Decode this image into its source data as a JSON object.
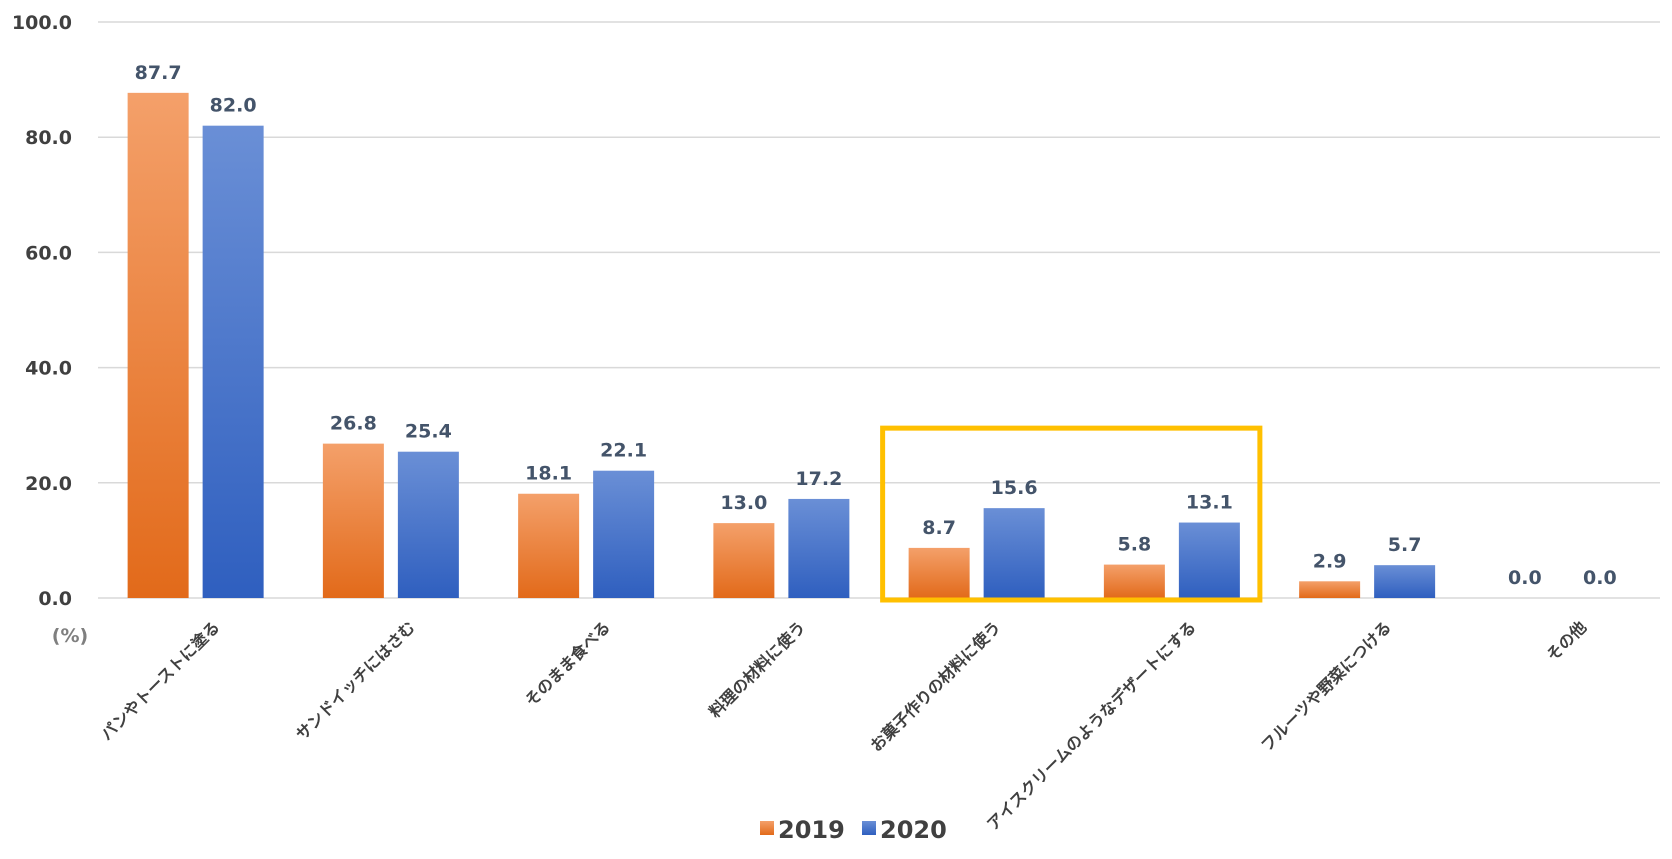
{
  "chart_data": {
    "type": "bar",
    "title": "",
    "xlabel": "",
    "ylabel": "",
    "unit_label": "(%)",
    "ylim": [
      0,
      100
    ],
    "yticks": [
      "0.0",
      "20.0",
      "40.0",
      "60.0",
      "80.0",
      "100.0"
    ],
    "ytick_values": [
      0,
      20,
      40,
      60,
      80,
      100
    ],
    "categories": [
      "パンやトーストに塗る",
      "サンドイッチにはさむ",
      "そのまま食べる",
      "料理の材料に使う",
      "お菓子作りの材料に使う",
      "アイスクリームのようなデザートにする",
      "フルーツや野菜につける",
      "その他"
    ],
    "series": [
      {
        "name": "2019",
        "values": [
          87.7,
          26.8,
          18.1,
          13.0,
          8.7,
          5.8,
          2.9,
          0.0
        ],
        "labels": [
          "87.7",
          "26.8",
          "18.1",
          "13.0",
          "8.7",
          "5.8",
          "2.9",
          "0.0"
        ],
        "color_top": "#f4a06a",
        "color_bottom": "#e26a1a"
      },
      {
        "name": "2020",
        "values": [
          82.0,
          25.4,
          22.1,
          17.2,
          15.6,
          13.1,
          5.7,
          0.0
        ],
        "labels": [
          "82.0",
          "25.4",
          "22.1",
          "17.2",
          "15.6",
          "13.1",
          "5.7",
          "0.0"
        ],
        "color_top": "#6a8fd6",
        "color_bottom": "#2f5fbf"
      }
    ],
    "highlight": {
      "categories": [
        4,
        5
      ],
      "color": "#ffc000"
    },
    "grid": true,
    "legend_position": "bottom"
  }
}
